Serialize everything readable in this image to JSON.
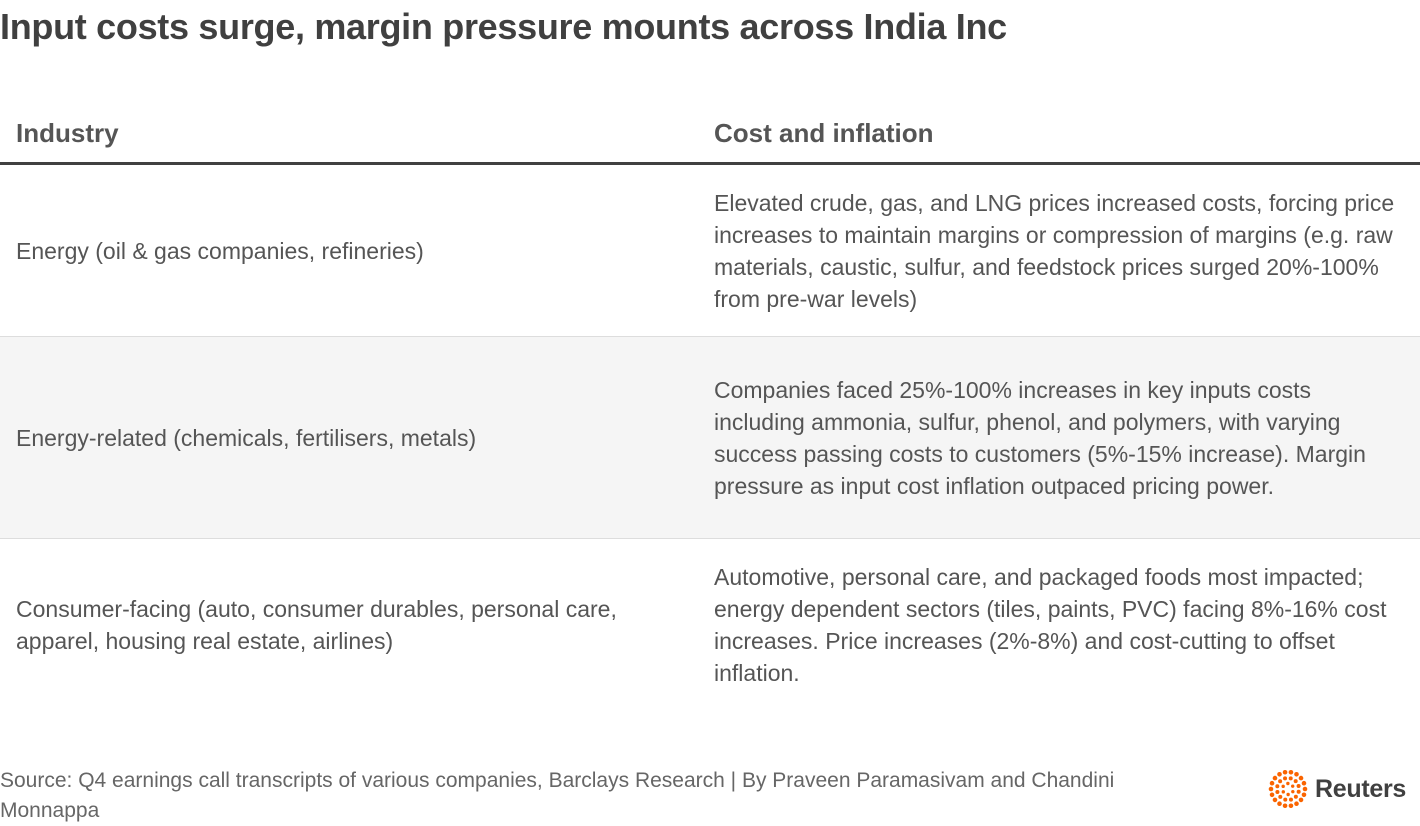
{
  "title": "Input costs surge, margin pressure mounts across India Inc",
  "chart_data": {
    "type": "table",
    "columns": [
      "Industry",
      "Cost and inflation"
    ],
    "rows": [
      {
        "industry": "Energy (oil & gas companies, refineries)",
        "cost": "Elevated crude, gas, and LNG prices increased costs, forcing price increases to maintain margins or compression of margins (e.g. raw materials, caustic, sulfur, and feedstock prices surged 20%-100% from pre-war levels)"
      },
      {
        "industry": "Energy-related (chemicals, fertilisers, metals)",
        "cost": "Companies faced 25%-100% increases in key inputs costs including ammonia, sulfur, phenol, and polymers, with varying success passing costs to customers (5%-15% increase). Margin pressure as input cost inflation outpaced pricing power."
      },
      {
        "industry": "Consumer-facing (auto, consumer durables, personal care, apparel, housing real estate, airlines)",
        "cost": "Automotive, personal care, and packaged foods most impacted; energy dependent sectors (tiles, paints, PVC) facing 8%-16% cost increases. Price increases (2%-8%) and cost-cutting to offset inflation."
      }
    ]
  },
  "footer": {
    "source": "Source: Q4 earnings call transcripts of various companies, Barclays Research | By Praveen Paramasivam and Chandini Monnappa"
  },
  "logo": {
    "text": "Reuters",
    "icon": "reuters-logo-icon",
    "color": "#fa6400"
  }
}
